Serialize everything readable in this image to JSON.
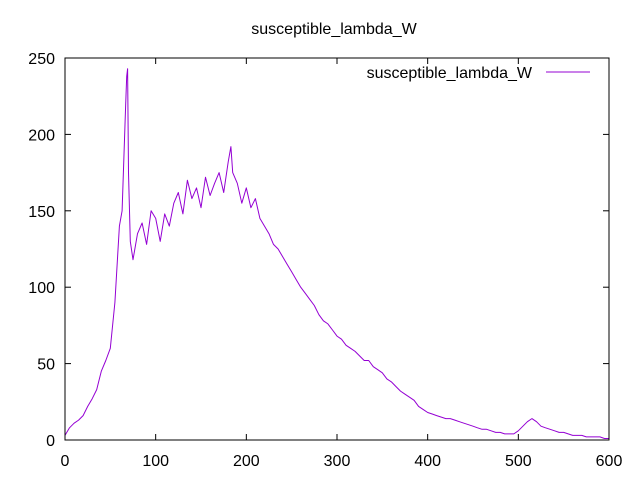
{
  "chart_data": {
    "type": "line",
    "title": "susceptible_lambda_W",
    "xlabel": "",
    "ylabel": "",
    "xlim": [
      0,
      600
    ],
    "ylim": [
      0,
      250
    ],
    "xticks": [
      0,
      100,
      200,
      300,
      400,
      500,
      600
    ],
    "yticks": [
      0,
      50,
      100,
      150,
      200,
      250
    ],
    "grid": false,
    "legend_position": "top-right",
    "series": [
      {
        "name": "susceptible_lambda_W",
        "color": "#9400d3",
        "x": [
          0,
          5,
          10,
          15,
          20,
          25,
          30,
          35,
          40,
          45,
          50,
          55,
          58,
          60,
          63,
          65,
          67,
          68,
          69,
          70,
          72,
          75,
          80,
          85,
          90,
          95,
          100,
          105,
          110,
          115,
          120,
          125,
          130,
          135,
          140,
          145,
          150,
          155,
          160,
          165,
          170,
          175,
          180,
          183,
          185,
          190,
          195,
          200,
          205,
          210,
          215,
          220,
          225,
          230,
          235,
          240,
          245,
          250,
          255,
          260,
          265,
          270,
          275,
          280,
          285,
          290,
          295,
          300,
          305,
          310,
          315,
          320,
          325,
          330,
          335,
          340,
          345,
          350,
          355,
          360,
          365,
          370,
          375,
          380,
          385,
          390,
          395,
          400,
          405,
          410,
          415,
          420,
          425,
          430,
          435,
          440,
          445,
          450,
          455,
          460,
          465,
          470,
          475,
          480,
          485,
          490,
          495,
          500,
          505,
          510,
          515,
          520,
          525,
          530,
          535,
          540,
          545,
          550,
          555,
          560,
          565,
          570,
          575,
          580,
          585,
          590,
          595,
          600
        ],
        "y": [
          3,
          8,
          11,
          13,
          16,
          22,
          27,
          33,
          45,
          52,
          60,
          90,
          120,
          140,
          150,
          185,
          220,
          238,
          243,
          175,
          130,
          118,
          135,
          142,
          128,
          150,
          145,
          130,
          148,
          140,
          155,
          162,
          148,
          170,
          158,
          165,
          152,
          172,
          160,
          168,
          175,
          162,
          182,
          192,
          175,
          168,
          155,
          165,
          152,
          158,
          145,
          140,
          135,
          128,
          125,
          120,
          115,
          110,
          105,
          100,
          96,
          92,
          88,
          82,
          78,
          76,
          72,
          68,
          66,
          62,
          60,
          58,
          55,
          52,
          52,
          48,
          46,
          44,
          40,
          38,
          35,
          32,
          30,
          28,
          26,
          22,
          20,
          18,
          17,
          16,
          15,
          14,
          14,
          13,
          12,
          11,
          10,
          9,
          8,
          7,
          7,
          6,
          5,
          5,
          4,
          4,
          4,
          6,
          9,
          12,
          14,
          12,
          9,
          8,
          7,
          6,
          5,
          5,
          4,
          3,
          3,
          3,
          2,
          2,
          2,
          2,
          1,
          1
        ]
      }
    ]
  }
}
